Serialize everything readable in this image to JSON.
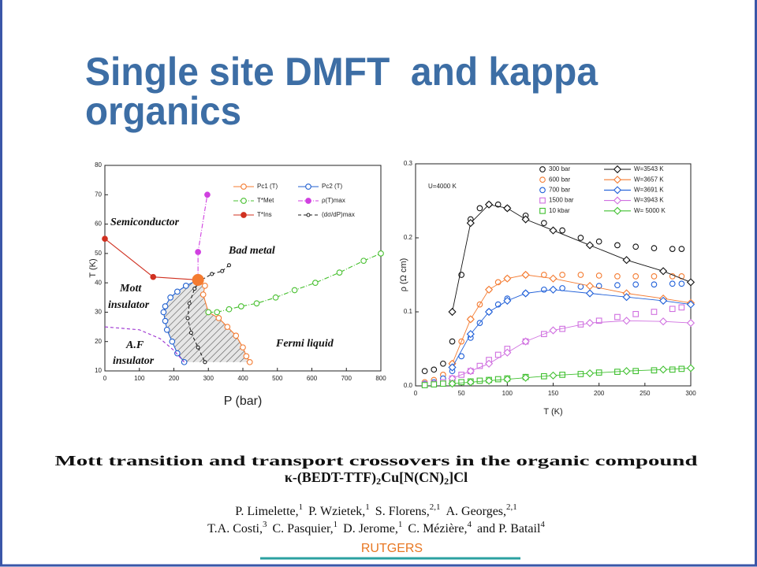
{
  "title_lines": [
    "Single site DMFT  and kappa",
    "organics"
  ],
  "chart_data": [
    {
      "type": "line",
      "x_label": "P (bar)",
      "y_label": "T (K)",
      "xlim": [
        0,
        800
      ],
      "xticks": [
        0,
        100,
        200,
        300,
        400,
        500,
        600,
        700,
        800
      ],
      "ylim": [
        10,
        80
      ],
      "yticks": [
        10,
        20,
        30,
        40,
        50,
        60,
        70,
        80
      ],
      "legend": {
        "corner": "upper right",
        "order": "rows",
        "columns": 2
      },
      "annotations": [
        "Semiconductor",
        "Bad metal",
        "Mott",
        "insulator",
        "A.F",
        "insulator",
        "Fermi liquid"
      ],
      "series": [
        {
          "name": "Pc1 (T)",
          "color": "#f47b31",
          "marker": "circle",
          "filled": false,
          "line": "solid",
          "x": [
            270,
            290,
            285,
            300,
            330,
            355,
            380,
            400,
            410,
            420
          ],
          "values": [
            41,
            39,
            36,
            30,
            28,
            25,
            22,
            18,
            15,
            13
          ]
        },
        {
          "name": "Pc2 (T)",
          "color": "#2060d0",
          "marker": "circle",
          "filled": false,
          "line": "solid",
          "x": [
            270,
            235,
            210,
            190,
            175,
            170,
            175,
            180,
            195,
            210,
            230
          ],
          "values": [
            41,
            39,
            37,
            35,
            32,
            30,
            27,
            24,
            20,
            16,
            13
          ]
        },
        {
          "name": "T*Met",
          "color": "#48c030",
          "marker": "circle",
          "filled": false,
          "line": "dashdot",
          "x": [
            300,
            325,
            360,
            395,
            440,
            495,
            550,
            610,
            680,
            750,
            800
          ],
          "values": [
            30,
            30,
            31,
            32,
            33,
            35,
            37.5,
            40,
            43.5,
            47.5,
            50
          ]
        },
        {
          "name": "ρ(T)max",
          "color": "#d040e0",
          "marker": "circle",
          "filled": true,
          "line": "dashdot",
          "x": [
            270,
            270,
            297
          ],
          "values": [
            41,
            50.5,
            70
          ]
        },
        {
          "name": "T*Ins",
          "color": "#d03020",
          "marker": "circle",
          "filled": true,
          "line": "solid",
          "x": [
            0,
            140,
            270
          ],
          "values": [
            55,
            42,
            41
          ]
        },
        {
          "name": "(dσ/dP)max",
          "color": "#222222",
          "marker": "circle",
          "filled": false,
          "size": "small",
          "line": "dashed",
          "x": [
            360,
            340,
            310,
            280,
            260,
            245,
            240,
            250,
            270,
            290
          ],
          "values": [
            46,
            44,
            43,
            41,
            38,
            33,
            28,
            23,
            18,
            13
          ]
        },
        {
          "color": "#9b30d0",
          "line": "dashed",
          "x": [
            0,
            100,
            160,
            200,
            230
          ],
          "values": [
            25,
            24,
            21,
            17,
            13
          ]
        },
        {
          "color": "#f47b31",
          "marker": "circle",
          "filled": true,
          "size": "large",
          "line": "none",
          "x": [
            270
          ],
          "values": [
            41
          ]
        }
      ]
    },
    {
      "type": "line",
      "x_label": "T (K)",
      "y_label": "ρ (Ω cm)",
      "xlim": [
        0,
        300
      ],
      "xticks": [
        0,
        50,
        100,
        150,
        200,
        250,
        300
      ],
      "ylim": [
        0,
        0.3
      ],
      "yticks": [
        {
          "value": 0,
          "label": "0.0"
        },
        0.1,
        0.2,
        0.3
      ],
      "legend": {
        "corner": "upper right",
        "order": "columns",
        "rows": 5
      },
      "annotations": [
        "U=4000 K"
      ],
      "series": [
        {
          "name": "300 bar",
          "color": "#111111",
          "marker": "circle",
          "filled": false,
          "line": "none",
          "x": [
            10,
            20,
            30,
            40,
            50,
            60,
            70,
            80,
            90,
            100,
            120,
            140,
            160,
            180,
            200,
            220,
            240,
            260,
            280,
            290
          ],
          "values": [
            0.02,
            0.022,
            0.03,
            0.06,
            0.15,
            0.225,
            0.24,
            0.245,
            0.245,
            0.24,
            0.23,
            0.22,
            0.21,
            0.2,
            0.195,
            0.19,
            0.188,
            0.186,
            0.185,
            0.185
          ]
        },
        {
          "name": "600 bar",
          "color": "#f47b31",
          "marker": "circle",
          "filled": false,
          "line": "none",
          "x": [
            10,
            20,
            30,
            40,
            50,
            60,
            70,
            80,
            90,
            100,
            120,
            140,
            160,
            180,
            200,
            220,
            240,
            260,
            280,
            290
          ],
          "values": [
            0.005,
            0.008,
            0.015,
            0.03,
            0.06,
            0.09,
            0.11,
            0.13,
            0.14,
            0.145,
            0.15,
            0.15,
            0.15,
            0.15,
            0.149,
            0.148,
            0.148,
            0.148,
            0.148,
            0.148
          ]
        },
        {
          "name": "700 bar",
          "color": "#1f5fd8",
          "marker": "circle",
          "filled": false,
          "line": "none",
          "x": [
            10,
            20,
            30,
            40,
            50,
            60,
            70,
            80,
            90,
            100,
            120,
            140,
            160,
            180,
            200,
            220,
            240,
            260,
            280,
            290
          ],
          "values": [
            0.003,
            0.005,
            0.01,
            0.02,
            0.04,
            0.065,
            0.085,
            0.1,
            0.11,
            0.118,
            0.125,
            0.13,
            0.132,
            0.134,
            0.135,
            0.136,
            0.137,
            0.137,
            0.138,
            0.138
          ]
        },
        {
          "name": "1500 bar",
          "color": "#d070e0",
          "marker": "square",
          "filled": false,
          "line": "none",
          "x": [
            10,
            20,
            30,
            40,
            50,
            60,
            70,
            80,
            90,
            100,
            120,
            140,
            160,
            180,
            200,
            220,
            240,
            260,
            280,
            290
          ],
          "values": [
            0.002,
            0.003,
            0.005,
            0.01,
            0.015,
            0.02,
            0.027,
            0.035,
            0.042,
            0.05,
            0.06,
            0.07,
            0.077,
            0.083,
            0.088,
            0.093,
            0.097,
            0.1,
            0.104,
            0.106
          ]
        },
        {
          "name": "10 kbar",
          "color": "#40c030",
          "marker": "square",
          "filled": false,
          "line": "none",
          "x": [
            10,
            20,
            30,
            40,
            50,
            60,
            70,
            80,
            90,
            100,
            120,
            140,
            160,
            180,
            200,
            220,
            240,
            260,
            280,
            290
          ],
          "values": [
            0.001,
            0.002,
            0.003,
            0.004,
            0.005,
            0.006,
            0.007,
            0.008,
            0.009,
            0.01,
            0.012,
            0.013,
            0.015,
            0.016,
            0.018,
            0.019,
            0.02,
            0.021,
            0.022,
            0.023
          ]
        },
        {
          "name": "W=3543 K",
          "color": "#111111",
          "marker": "diamond",
          "filled": false,
          "line": "solid",
          "x": [
            40,
            60,
            80,
            100,
            120,
            150,
            190,
            230,
            270,
            300
          ],
          "values": [
            0.1,
            0.22,
            0.245,
            0.24,
            0.225,
            0.21,
            0.19,
            0.17,
            0.155,
            0.14
          ]
        },
        {
          "name": "W=3657 K",
          "color": "#f47b31",
          "marker": "diamond",
          "filled": false,
          "line": "solid",
          "x": [
            40,
            60,
            80,
            100,
            120,
            150,
            190,
            230,
            270,
            300
          ],
          "values": [
            0.03,
            0.09,
            0.13,
            0.145,
            0.15,
            0.145,
            0.135,
            0.125,
            0.118,
            0.112
          ]
        },
        {
          "name": "W=3691 K",
          "color": "#1f5fd8",
          "marker": "diamond",
          "filled": false,
          "line": "solid",
          "x": [
            40,
            60,
            80,
            100,
            120,
            150,
            190,
            230,
            270,
            300
          ],
          "values": [
            0.025,
            0.07,
            0.1,
            0.115,
            0.125,
            0.13,
            0.125,
            0.12,
            0.115,
            0.11
          ]
        },
        {
          "name": "W=3943 K",
          "color": "#d070e0",
          "marker": "diamond",
          "filled": false,
          "line": "solid",
          "x": [
            40,
            60,
            80,
            100,
            120,
            150,
            190,
            230,
            270,
            300
          ],
          "values": [
            0.01,
            0.02,
            0.03,
            0.045,
            0.06,
            0.075,
            0.085,
            0.088,
            0.087,
            0.085
          ]
        },
        {
          "name": "W= 5000 K",
          "color": "#40c030",
          "marker": "diamond",
          "filled": false,
          "line": "solid",
          "x": [
            40,
            60,
            80,
            100,
            120,
            150,
            190,
            230,
            270,
            300
          ],
          "values": [
            0.003,
            0.005,
            0.007,
            0.009,
            0.011,
            0.014,
            0.017,
            0.02,
            0.022,
            0.024
          ]
        }
      ]
    }
  ],
  "paper": {
    "title": "Mott transition and transport crossovers in the organic compound",
    "formula": [
      "κ-(BEDT-TTF)",
      "2",
      "Cu[N(CN)",
      "2",
      "]Cl"
    ],
    "authors": [
      [
        {
          "name": "P. Limelette,",
          "aff": "1"
        },
        {
          "name": "P. Wzietek,",
          "aff": "1"
        },
        {
          "name": "S. Florens,",
          "aff": "2,1"
        },
        {
          "name": "A. Georges,",
          "aff": "2,1"
        }
      ],
      [
        {
          "name": "T.A. Costi,",
          "aff": "3"
        },
        {
          "name": "C. Pasquier,",
          "aff": "1"
        },
        {
          "name": "D. Jerome,",
          "aff": "1"
        },
        {
          "name": "C. Mézière,",
          "aff": "4"
        },
        {
          "name": "and P. Batail",
          "aff": "4"
        }
      ]
    ]
  },
  "footer": "RUTGERS"
}
